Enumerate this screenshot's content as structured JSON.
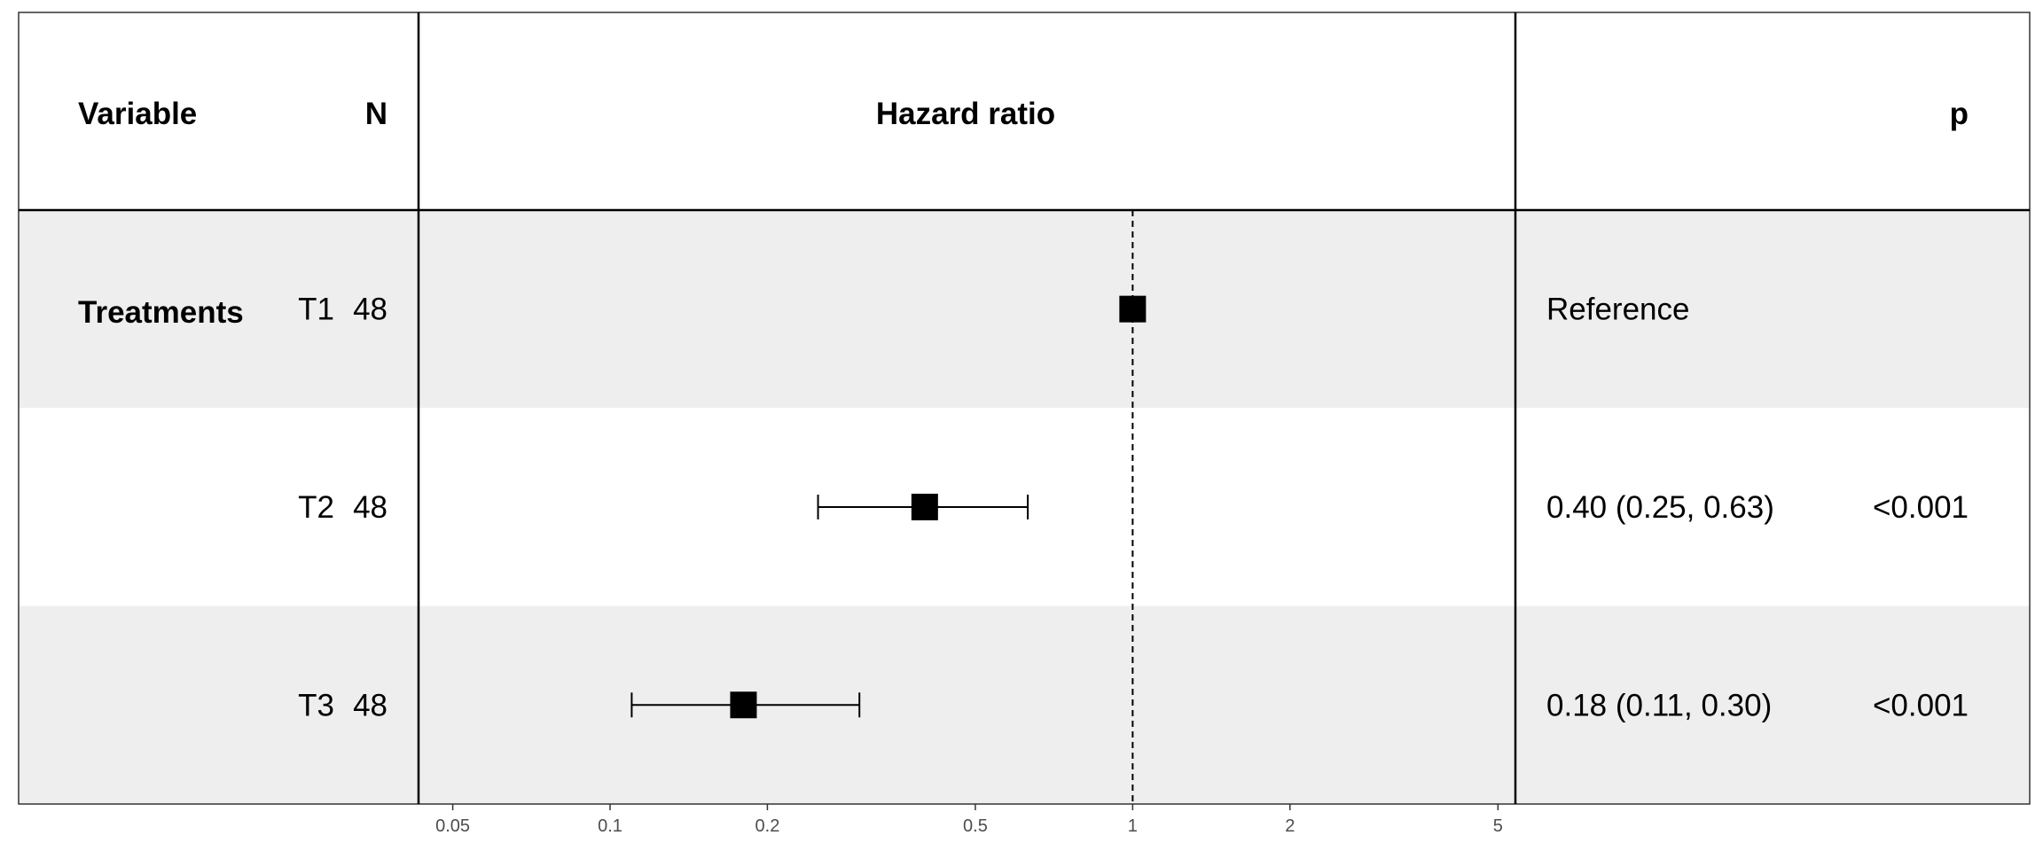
{
  "chart_data": {
    "type": "forest",
    "headers": {
      "variable": "Variable",
      "n": "N",
      "plot": "Hazard ratio",
      "p": "p"
    },
    "group_label": "Treatments",
    "rows": [
      {
        "level": "T1",
        "n": "48",
        "hr": 1.0,
        "lower": null,
        "upper": null,
        "estimate_text": "Reference",
        "p_text": ""
      },
      {
        "level": "T2",
        "n": "48",
        "hr": 0.4,
        "lower": 0.25,
        "upper": 0.63,
        "estimate_text": "0.40 (0.25, 0.63)",
        "p_text": "<0.001"
      },
      {
        "level": "T3",
        "n": "48",
        "hr": 0.18,
        "lower": 0.11,
        "upper": 0.3,
        "estimate_text": "0.18 (0.11, 0.30)",
        "p_text": "<0.001"
      }
    ],
    "x_scale": "log",
    "xlim": [
      0.043,
      5.4
    ],
    "x_ticks": [
      0.05,
      0.1,
      0.2,
      0.5,
      1,
      2,
      5
    ],
    "x_tick_labels": [
      "0.05",
      "0.1",
      "0.2",
      "0.5",
      "1",
      "2",
      "5"
    ],
    "reference_line": 1,
    "row_shading": [
      "#eeeeee",
      "#ffffff",
      "#eeeeee"
    ]
  }
}
